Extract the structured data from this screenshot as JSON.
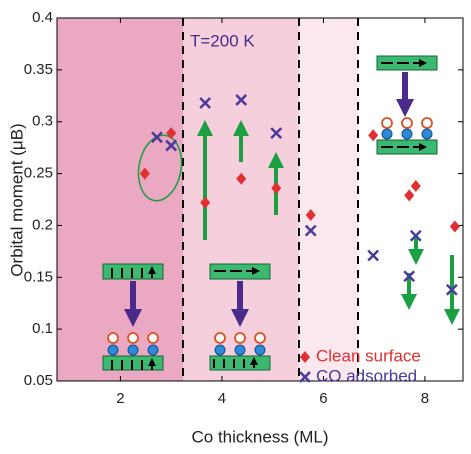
{
  "chart_data": {
    "type": "scatter",
    "xlabel": "Co thickness  (ML)",
    "ylabel": "Orbital moment  (μB)",
    "annotation": "T=200 K",
    "xlim": [
      0.75,
      8.75
    ],
    "xticks": [
      2,
      4,
      6,
      8
    ],
    "ylim": [
      0.05,
      0.4
    ],
    "yticks": [
      {
        "value": 0.05,
        "label": "0.05"
      },
      0.1,
      0.15,
      0.2,
      0.25,
      0.3,
      0.35,
      0.4
    ],
    "series": [
      {
        "name": "Clean surface",
        "color": "#e03030",
        "marker": "diamond",
        "x": [
          2.48,
          3.0,
          3.67,
          4.38,
          5.07,
          5.75,
          6.98,
          7.69,
          7.82,
          8.59
        ],
        "values": [
          0.25,
          0.289,
          0.222,
          0.245,
          0.236,
          0.21,
          0.287,
          0.229,
          0.238,
          0.199
        ]
      },
      {
        "name": "CO adsorbed",
        "color": "#4a3a9a",
        "marker": "cross",
        "x": [
          2.72,
          3.0,
          3.67,
          4.38,
          5.07,
          5.75,
          6.98,
          7.69,
          7.82,
          8.53
        ],
        "values": [
          0.285,
          0.277,
          0.318,
          0.321,
          0.289,
          0.195,
          0.171,
          0.151,
          0.19,
          0.138
        ]
      }
    ]
  }
}
